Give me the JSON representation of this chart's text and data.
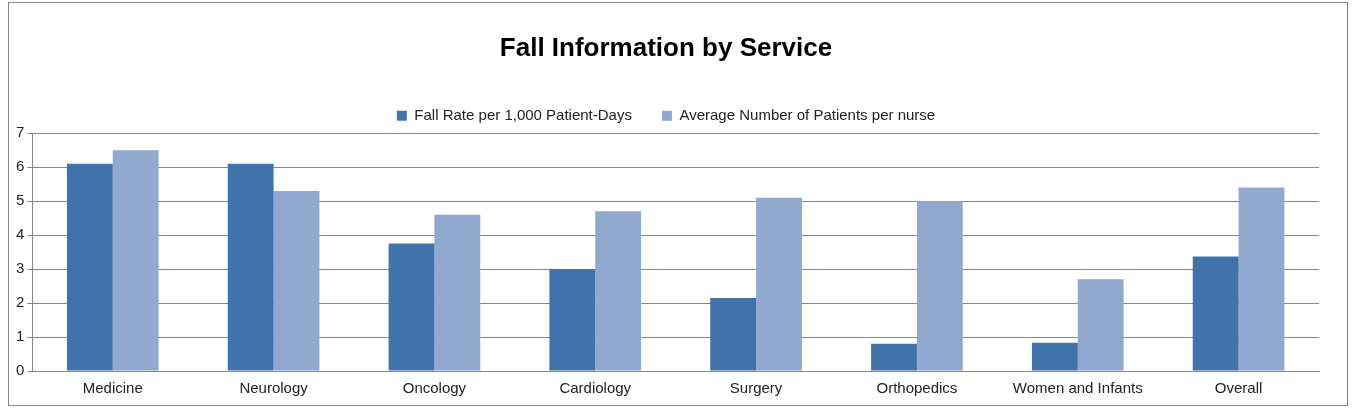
{
  "chart_data": {
    "type": "bar",
    "title": "Fall Information by Service",
    "categories": [
      "Medicine",
      "Neurology",
      "Oncology",
      "Cardiology",
      "Surgery",
      "Orthopedics",
      "Women and Infants",
      "Overall"
    ],
    "series": [
      {
        "name": "Fall Rate per 1,000 Patient-Days",
        "color": "#4073a9",
        "values": [
          6.1,
          6.1,
          3.75,
          3.0,
          2.15,
          0.8,
          0.83,
          3.37
        ]
      },
      {
        "name": "Average Number of Patients per nurse",
        "color": "#91a9cf",
        "values": [
          6.5,
          5.3,
          4.6,
          4.7,
          5.1,
          5.0,
          2.7,
          5.4
        ]
      }
    ],
    "ylim": [
      0,
      7
    ],
    "yticks": [
      0,
      1,
      2,
      3,
      4,
      5,
      6,
      7
    ],
    "grid": "y",
    "legend": "top"
  }
}
